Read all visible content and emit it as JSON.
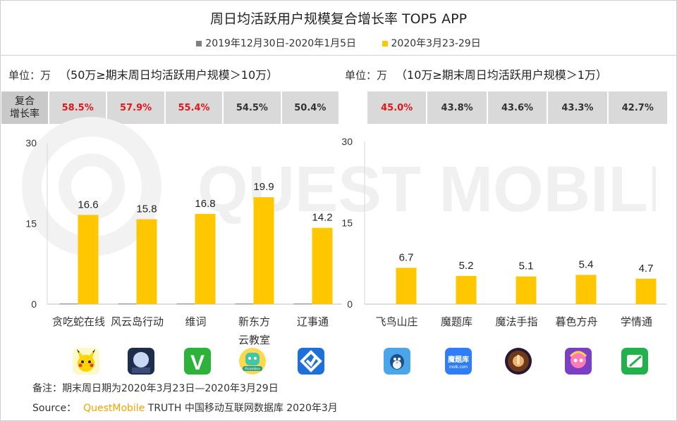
{
  "title": "周日均活跃用户规模复合增长率 TOP5 APP",
  "legend": [
    {
      "label": "2019年12月30日-2020年1月5日",
      "color": "#7f7f7f"
    },
    {
      "label": "2020年3月23-29日",
      "color": "#ffc700"
    }
  ],
  "left_panel": {
    "unit_label": "单位：万",
    "subtitle": "（50万≥期末周日均活跃用户规模＞10万）",
    "growth_header": "复合增长率",
    "growth_header_line1": "复合",
    "growth_header_line2": "增长率",
    "growth_rates": [
      "58.5%",
      "57.9%",
      "55.4%",
      "54.5%",
      "50.4%"
    ],
    "growth_highlight": [
      true,
      true,
      true,
      false,
      false
    ]
  },
  "right_panel": {
    "unit_label": "单位：万",
    "subtitle": "（10万≥期末周日均活跃用户规模＞1万）",
    "growth_rates": [
      "45.0%",
      "43.8%",
      "43.6%",
      "43.3%",
      "42.7%"
    ],
    "growth_highlight": [
      true,
      false,
      false,
      false,
      false
    ]
  },
  "chart_data": [
    {
      "type": "bar",
      "categories": [
        "贪吃蛇在线",
        "风云岛行动",
        "维词",
        "新东方云教室",
        "辽事通"
      ],
      "category_lines": [
        [
          "贪吃蛇在线"
        ],
        [
          "风云岛行动"
        ],
        [
          "维词"
        ],
        [
          "新东方",
          "云教室"
        ],
        [
          "辽事通"
        ]
      ],
      "series": [
        {
          "name": "2019年12月30日-2020年1月5日",
          "values": [
            0.1,
            0.1,
            0.1,
            0.1,
            0.1
          ],
          "color": "#7f7f7f"
        },
        {
          "name": "2020年3月23-29日",
          "values": [
            16.6,
            15.8,
            16.8,
            19.9,
            14.2
          ],
          "color": "#ffc700"
        }
      ],
      "ylim": [
        0,
        30
      ],
      "yticks": [
        "0",
        "15",
        "30"
      ],
      "value_labels": [
        "16.6",
        "15.8",
        "16.8",
        "19.9",
        "14.2"
      ]
    },
    {
      "type": "bar",
      "categories": [
        "飞鸟山庄",
        "魔题库",
        "魔法手指",
        "暮色方舟",
        "学情通"
      ],
      "category_lines": [
        [
          "飞鸟山庄"
        ],
        [
          "魔题库"
        ],
        [
          "魔法手指"
        ],
        [
          "暮色方舟"
        ],
        [
          "学情通"
        ]
      ],
      "series": [
        {
          "name": "2019年12月30日-2020年1月5日",
          "values": [
            0,
            0,
            0,
            0,
            0
          ],
          "color": "#7f7f7f"
        },
        {
          "name": "2020年3月23-29日",
          "values": [
            6.7,
            5.2,
            5.1,
            5.4,
            4.7
          ],
          "color": "#ffc700"
        }
      ],
      "ylim": [
        0,
        30
      ],
      "yticks": [
        "0",
        "15",
        "30"
      ],
      "value_labels": [
        "6.7",
        "5.2",
        "5.1",
        "5.4",
        "4.7"
      ]
    }
  ],
  "app_icons": [
    {
      "name": "pikachu-app-icon"
    },
    {
      "name": "windcloud-island-app-icon"
    },
    {
      "name": "weici-app-icon",
      "glyph": "V"
    },
    {
      "name": "roombox-app-icon",
      "glyph": "Roombox"
    },
    {
      "name": "liaoshitong-app-icon"
    },
    {
      "name": "bird-manor-app-icon"
    },
    {
      "name": "motiku-app-icon",
      "glyph": "魔题库",
      "glyph2": "motk.com"
    },
    {
      "name": "magic-finger-app-icon"
    },
    {
      "name": "twilight-ark-app-icon"
    },
    {
      "name": "xueqingtong-app-icon"
    }
  ],
  "footer": {
    "note": "备注：期末周日期为2020年3月23日—2020年3月29日",
    "source_prefix": "Source：",
    "source_brand": "QuestMobile",
    "source_rest": "TRUTH 中国移动互联网数据库 2020年3月"
  },
  "watermark": "QUEST MOBILE"
}
